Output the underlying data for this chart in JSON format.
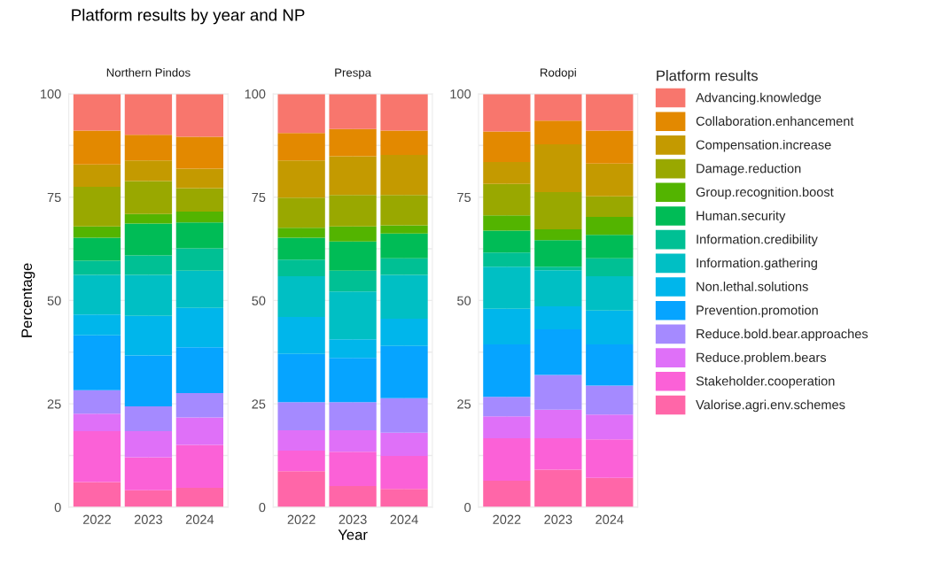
{
  "chart_data": [
    {
      "type": "bar",
      "title": "Platform results by year and NP",
      "subtitle": "Northern Pindos",
      "ylabel": "Percentage",
      "categories": [
        "2022",
        "2023",
        "2024"
      ],
      "stacked": true,
      "ylim": [
        0,
        100
      ],
      "yticks": [
        0,
        {
          "value": 12.5,
          "label": null
        },
        25,
        {
          "value": 37.5,
          "label": null
        },
        50,
        {
          "value": 62.5,
          "label": null
        },
        75,
        {
          "value": 87.5,
          "label": null
        },
        100
      ],
      "grid": true,
      "series": [
        {
          "color": "#FF66A8",
          "values": [
            6.1,
            4.1,
            4.7
          ]
        },
        {
          "color": "#FB61D7",
          "values": [
            12.3,
            8.0,
            10.4
          ]
        },
        {
          "color": "#DF70F8",
          "values": [
            4.2,
            6.3,
            6.6
          ]
        },
        {
          "color": "#A58AFF",
          "values": [
            5.7,
            6.0,
            5.9
          ]
        },
        {
          "color": "#06A4FF",
          "values": [
            13.3,
            12.3,
            11.1
          ]
        },
        {
          "color": "#00B6EB",
          "values": [
            5.0,
            9.6,
            9.5
          ]
        },
        {
          "color": "#00BFC4",
          "values": [
            9.6,
            9.9,
            9.0
          ]
        },
        {
          "color": "#00C094",
          "values": [
            3.4,
            4.7,
            5.4
          ]
        },
        {
          "color": "#00BC56",
          "values": [
            5.6,
            7.7,
            6.3
          ]
        },
        {
          "color": "#53B400",
          "values": [
            2.7,
            2.3,
            2.6
          ]
        },
        {
          "color": "#99A800",
          "values": [
            9.6,
            8.0,
            5.7
          ]
        },
        {
          "color": "#C49A00",
          "values": [
            5.4,
            5.0,
            4.7
          ]
        },
        {
          "color": "#E38900",
          "values": [
            8.2,
            6.2,
            7.7
          ]
        },
        {
          "color": "#F8766D",
          "values": [
            8.9,
            9.9,
            10.4
          ]
        }
      ]
    },
    {
      "type": "bar",
      "subtitle": "Prespa",
      "xlabel": "Year",
      "categories": [
        "2022",
        "2023",
        "2024"
      ],
      "stacked": true,
      "ylim": [
        0,
        100
      ],
      "yticks": [
        0,
        {
          "value": 12.5,
          "label": null
        },
        25,
        {
          "value": 37.5,
          "label": null
        },
        50,
        {
          "value": 62.5,
          "label": null
        },
        75,
        {
          "value": 87.5,
          "label": null
        },
        100
      ],
      "grid": true,
      "series": [
        {
          "color": "#FF66A8",
          "values": [
            8.7,
            5.1,
            4.4
          ]
        },
        {
          "color": "#FB61D7",
          "values": [
            5.0,
            8.3,
            8.0
          ]
        },
        {
          "color": "#DF70F8",
          "values": [
            4.9,
            5.2,
            5.6
          ]
        },
        {
          "color": "#A58AFF",
          "values": [
            6.8,
            6.8,
            8.4
          ]
        },
        {
          "color": "#06A4FF",
          "values": [
            11.7,
            10.7,
            12.6
          ]
        },
        {
          "color": "#00B6EB",
          "values": [
            8.9,
            4.5,
            6.6
          ]
        },
        {
          "color": "#00BFC4",
          "values": [
            9.9,
            11.6,
            10.6
          ]
        },
        {
          "color": "#00C094",
          "values": [
            4.0,
            5.0,
            4.0
          ]
        },
        {
          "color": "#00BC56",
          "values": [
            5.3,
            7.1,
            6.0
          ]
        },
        {
          "color": "#53B400",
          "values": [
            2.4,
            3.6,
            2.0
          ]
        },
        {
          "color": "#99A800",
          "values": [
            7.3,
            7.6,
            7.3
          ]
        },
        {
          "color": "#C49A00",
          "values": [
            9.0,
            9.4,
            9.7
          ]
        },
        {
          "color": "#E38900",
          "values": [
            6.6,
            6.6,
            5.9
          ]
        },
        {
          "color": "#F8766D",
          "values": [
            9.5,
            8.5,
            8.9
          ]
        }
      ]
    },
    {
      "type": "bar",
      "subtitle": "Rodopi",
      "legend_title": "Platform results",
      "categories": [
        "2022",
        "2023",
        "2024"
      ],
      "stacked": true,
      "ylim": [
        0,
        100
      ],
      "yticks": [
        0,
        {
          "value": 12.5,
          "label": null
        },
        25,
        {
          "value": 37.5,
          "label": null
        },
        50,
        {
          "value": 62.5,
          "label": null
        },
        75,
        {
          "value": 87.5,
          "label": null
        },
        100
      ],
      "grid": true,
      "legend": "right",
      "series": [
        {
          "name": "Valorise.agri.env.schemes",
          "color": "#FF66A8",
          "values": [
            6.4,
            9.1,
            7.1
          ]
        },
        {
          "name": "Stakeholder.cooperation",
          "color": "#FB61D7",
          "values": [
            10.3,
            7.6,
            9.3
          ]
        },
        {
          "name": "Reduce.problem.bears",
          "color": "#DF70F8",
          "values": [
            5.3,
            6.9,
            6.0
          ]
        },
        {
          "name": "Reduce.bold.bear.approaches",
          "color": "#A58AFF",
          "values": [
            4.7,
            8.4,
            7.0
          ]
        },
        {
          "name": "Prevention.promotion",
          "color": "#06A4FF",
          "values": [
            12.7,
            11.0,
            10.0
          ]
        },
        {
          "name": "Non.lethal.solutions",
          "color": "#00B6EB",
          "values": [
            8.6,
            5.6,
            8.2
          ]
        },
        {
          "name": "Information.gathering",
          "color": "#00BFC4",
          "values": [
            10.2,
            8.7,
            8.3
          ]
        },
        {
          "name": "Information.credibility",
          "color": "#00C094",
          "values": [
            3.4,
            0.9,
            4.3
          ]
        },
        {
          "name": "Human.security",
          "color": "#00BC56",
          "values": [
            5.3,
            6.4,
            5.7
          ]
        },
        {
          "name": "Group.recognition.boost",
          "color": "#53B400",
          "values": [
            3.7,
            2.6,
            4.3
          ]
        },
        {
          "name": "Damage.reduction",
          "color": "#99A800",
          "values": [
            7.6,
            9.0,
            5.0
          ]
        },
        {
          "name": "Compensation.increase",
          "color": "#C49A00",
          "values": [
            5.3,
            11.6,
            7.9
          ]
        },
        {
          "name": "Collaboration.enhancement",
          "color": "#E38900",
          "values": [
            7.4,
            5.7,
            8.0
          ]
        },
        {
          "name": "Advancing.knowledge",
          "color": "#F8766D",
          "values": [
            9.1,
            6.5,
            8.9
          ]
        }
      ]
    }
  ]
}
